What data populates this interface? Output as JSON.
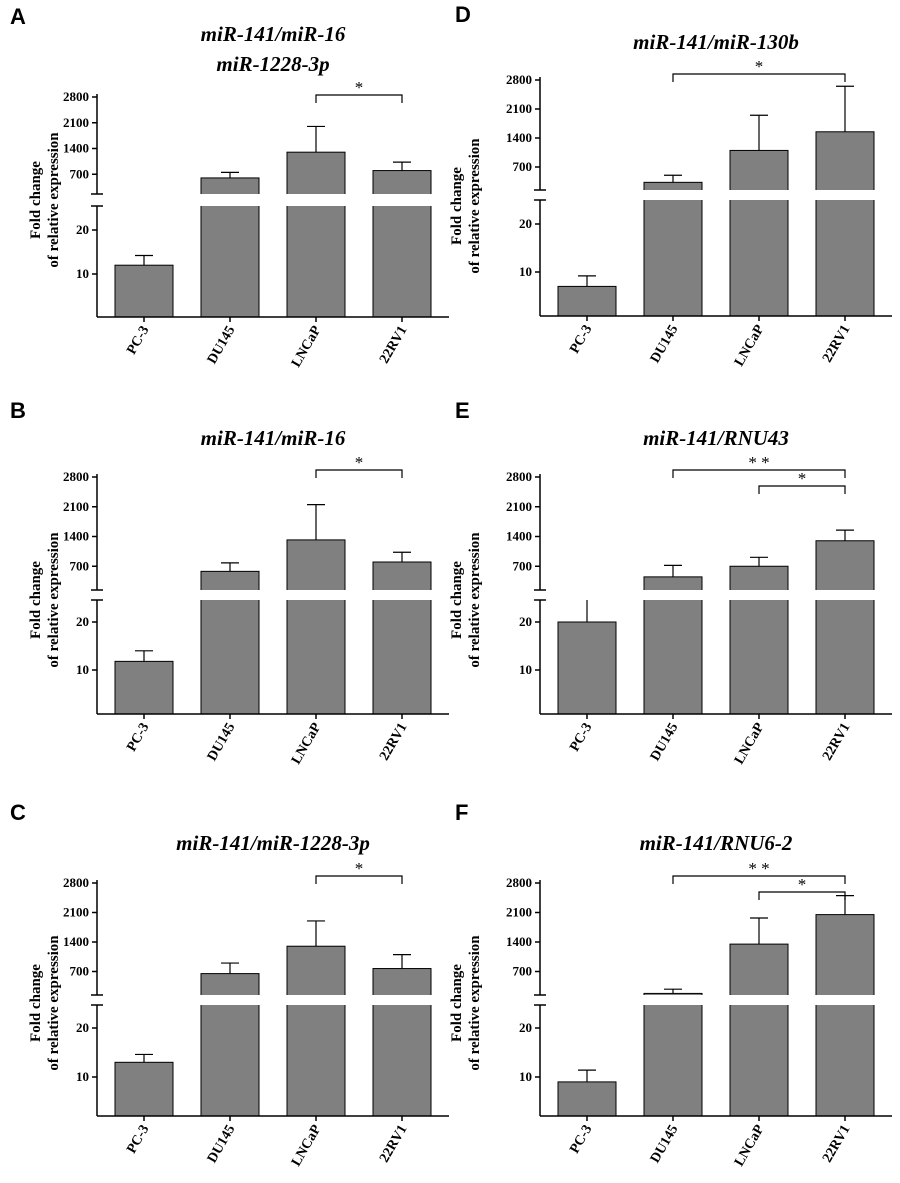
{
  "chart_data": [
    {
      "type": "bar",
      "panel": "A",
      "title_lines": [
        "miR-141/miR-16",
        "miR-1228-3p"
      ],
      "ylabel_lines": [
        "Fold change",
        "of relative expression"
      ],
      "categories": [
        "PC-3",
        "DU145",
        "LNCaP",
        "22RV1"
      ],
      "values": [
        12,
        600,
        1300,
        800
      ],
      "errors": [
        2.2,
        150,
        700,
        230
      ],
      "yticks_upper": [
        "2800",
        "2100",
        "1400",
        "700"
      ],
      "yticks_lower": [
        "20",
        "10"
      ],
      "axis_break": true,
      "significance": [
        {
          "from": "LNCaP",
          "to": "22RV1",
          "label": "*"
        }
      ]
    },
    {
      "type": "bar",
      "panel": "B",
      "title_lines": [
        "miR-141/miR-16"
      ],
      "ylabel_lines": [
        "Fold change",
        "of relative expression"
      ],
      "categories": [
        "PC-3",
        "DU145",
        "LNCaP",
        "22RV1"
      ],
      "values": [
        11.8,
        580,
        1320,
        800
      ],
      "errors": [
        2.2,
        200,
        830,
        230
      ],
      "yticks_upper": [
        "2800",
        "2100",
        "1400",
        "700"
      ],
      "yticks_lower": [
        "20",
        "10"
      ],
      "axis_break": true,
      "significance": [
        {
          "from": "LNCaP",
          "to": "22RV1",
          "label": "*"
        }
      ]
    },
    {
      "type": "bar",
      "panel": "C",
      "title_lines": [
        "miR-141/miR-1228-3p"
      ],
      "ylabel_lines": [
        "Fold change",
        "of relative expression"
      ],
      "categories": [
        "PC-3",
        "DU145",
        "LNCaP",
        "22RV1"
      ],
      "values": [
        13,
        650,
        1300,
        770
      ],
      "errors": [
        1.6,
        250,
        600,
        330
      ],
      "yticks_upper": [
        "2800",
        "2100",
        "1400",
        "700"
      ],
      "yticks_lower": [
        "20",
        "10"
      ],
      "axis_break": true,
      "significance": [
        {
          "from": "LNCaP",
          "to": "22RV1",
          "label": "*"
        }
      ]
    },
    {
      "type": "bar",
      "panel": "D",
      "title_lines": [
        "miR-141/miR-130b"
      ],
      "ylabel_lines": [
        "Fold change",
        "of relative expression"
      ],
      "categories": [
        "PC-3",
        "DU145",
        "LNCaP",
        "22RV1"
      ],
      "values": [
        7,
        330,
        1100,
        1550
      ],
      "errors": [
        2.2,
        170,
        850,
        1100
      ],
      "yticks_upper": [
        "2800",
        "2100",
        "1400",
        "700"
      ],
      "yticks_lower": [
        "20",
        "10"
      ],
      "axis_break": true,
      "significance": [
        {
          "from": "DU145",
          "to": "22RV1",
          "label": "*"
        }
      ]
    },
    {
      "type": "bar",
      "panel": "E",
      "title_lines": [
        "miR-141/RNU43"
      ],
      "ylabel_lines": [
        "Fold change",
        "of relative expression"
      ],
      "categories": [
        "PC-3",
        "DU145",
        "LNCaP",
        "22RV1"
      ],
      "values": [
        20,
        450,
        700,
        1300
      ],
      "errors": [
        6,
        270,
        210,
        250
      ],
      "yticks_upper": [
        "2800",
        "2100",
        "1400",
        "700"
      ],
      "yticks_lower": [
        "20",
        "10"
      ],
      "axis_break": true,
      "significance": [
        {
          "from": "DU145",
          "to": "22RV1",
          "label": "* *"
        },
        {
          "from": "LNCaP",
          "to": "22RV1",
          "label": "*"
        }
      ]
    },
    {
      "type": "bar",
      "panel": "F",
      "title_lines": [
        "miR-141/RNU6-2"
      ],
      "ylabel_lines": [
        "Fold change",
        "of relative expression"
      ],
      "categories": [
        "PC-3",
        "DU145",
        "LNCaP",
        "22RV1"
      ],
      "values": [
        9,
        180,
        1350,
        2050
      ],
      "errors": [
        2.4,
        100,
        620,
        450
      ],
      "yticks_upper": [
        "2800",
        "2100",
        "1400",
        "700"
      ],
      "yticks_lower": [
        "20",
        "10"
      ],
      "axis_break": true,
      "significance": [
        {
          "from": "DU145",
          "to": "22RV1",
          "label": "* *"
        },
        {
          "from": "LNCaP",
          "to": "22RV1",
          "label": "*"
        }
      ]
    }
  ]
}
